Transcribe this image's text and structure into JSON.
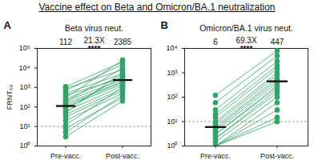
{
  "title": "Vaccine effect on Beta and Omicron/BA.1 neutralization",
  "chart_data": [
    {
      "type": "line",
      "panel_label": "A",
      "title": "Beta virus neut.",
      "y_label": "FRNT₅₀",
      "categories": [
        "Pre-vacc.",
        "Post-vacc."
      ],
      "color": "#33a36a",
      "marker": "circle",
      "log": "y",
      "ylim": [
        1,
        100000
      ],
      "yticks": [
        {
          "value": 1,
          "label": "10⁰"
        },
        {
          "value": 10,
          "label": "10¹"
        },
        {
          "value": 100,
          "label": "10²"
        },
        {
          "value": 1000,
          "label": "10³"
        },
        {
          "value": 10000,
          "label": "10⁴"
        },
        {
          "value": 100000,
          "label": "10⁵"
        }
      ],
      "limit_line": 10,
      "means": [
        112,
        2385
      ],
      "annotations": [
        "21.3X",
        "****"
      ],
      "series": [
        {
          "values": [
            1100,
            20000
          ]
        },
        {
          "values": [
            900,
            8000
          ]
        },
        {
          "values": [
            700,
            15000
          ]
        },
        {
          "values": [
            500,
            5000
          ]
        },
        {
          "values": [
            400,
            3000
          ]
        },
        {
          "values": [
            300,
            25000
          ]
        },
        {
          "values": [
            250,
            4000
          ]
        },
        {
          "values": [
            200,
            2500
          ]
        },
        {
          "values": [
            180,
            10000
          ]
        },
        {
          "values": [
            150,
            2000
          ]
        },
        {
          "values": [
            120,
            1800
          ]
        },
        {
          "values": [
            100,
            1500
          ]
        },
        {
          "values": [
            80,
            3500
          ]
        },
        {
          "values": [
            60,
            1200
          ]
        },
        {
          "values": [
            50,
            6000
          ]
        },
        {
          "values": [
            40,
            900
          ]
        },
        {
          "values": [
            30,
            700
          ]
        },
        {
          "values": [
            20,
            500
          ]
        },
        {
          "values": [
            12,
            1000
          ]
        },
        {
          "values": [
            8,
            300
          ]
        },
        {
          "values": [
            5,
            400
          ]
        },
        {
          "values": [
            3,
            200
          ]
        }
      ]
    },
    {
      "type": "line",
      "panel_label": "B",
      "title": "Omicron/BA.1 virus neut.",
      "categories": [
        "Pre-vacc.",
        "Post-vacc."
      ],
      "color": "#33a36a",
      "marker": "circle",
      "log": "y",
      "ylim": [
        1,
        10000
      ],
      "yticks": [
        {
          "value": 1,
          "label": "10⁰"
        },
        {
          "value": 10,
          "label": "10¹"
        },
        {
          "value": 100,
          "label": "10²"
        },
        {
          "value": 1000,
          "label": "10³"
        },
        {
          "value": 10000,
          "label": "10⁴"
        }
      ],
      "limit_line": 10,
      "means": [
        6,
        447
      ],
      "annotations": [
        "69.3X",
        "****"
      ],
      "series": [
        {
          "values": [
            120,
            8000
          ]
        },
        {
          "values": [
            60,
            5000
          ]
        },
        {
          "values": [
            30,
            3000
          ]
        },
        {
          "values": [
            20,
            2000
          ]
        },
        {
          "values": [
            15,
            1500
          ]
        },
        {
          "values": [
            10,
            1000
          ]
        },
        {
          "values": [
            8,
            800
          ]
        },
        {
          "values": [
            6,
            600
          ]
        },
        {
          "values": [
            5,
            500
          ]
        },
        {
          "values": [
            4,
            400
          ]
        },
        {
          "values": [
            3,
            300
          ]
        },
        {
          "values": [
            3,
            250
          ]
        },
        {
          "values": [
            2,
            200
          ]
        },
        {
          "values": [
            2,
            150
          ]
        },
        {
          "values": [
            1.5,
            100
          ]
        },
        {
          "values": [
            1,
            60
          ]
        },
        {
          "values": [
            1,
            30
          ]
        },
        {
          "values": [
            1,
            15
          ]
        },
        {
          "values": [
            1,
            10
          ]
        }
      ]
    }
  ]
}
